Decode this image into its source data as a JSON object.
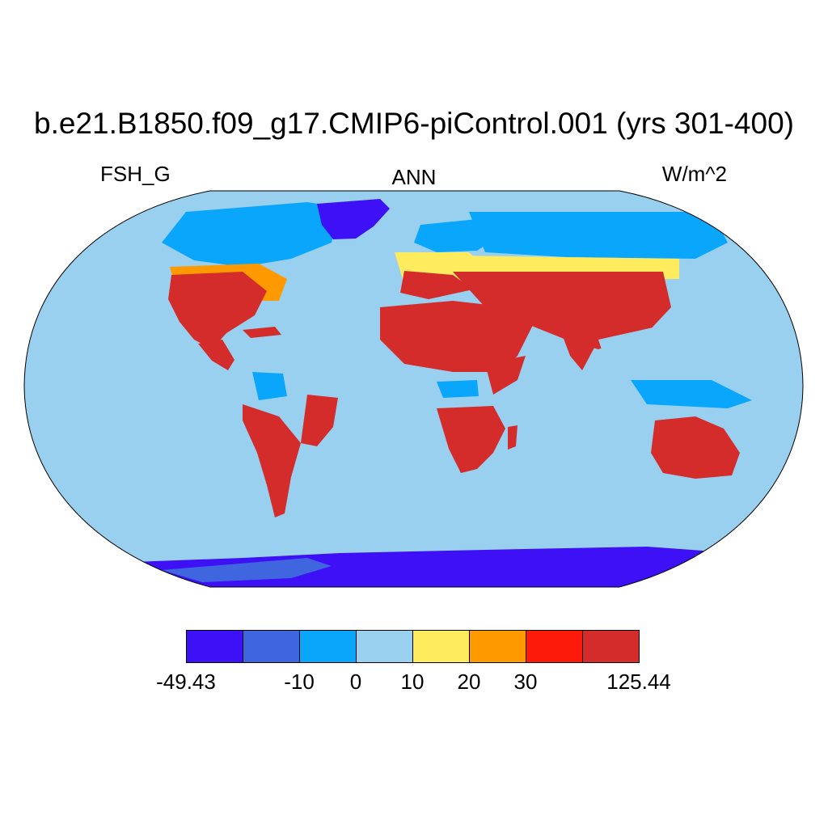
{
  "title": "b.e21.B1850.f09_g17.CMIP6-piControl.001 (yrs 301-400)",
  "subtitle_left": "FSH_G",
  "subtitle_center": "ANN",
  "subtitle_right": "W/m^2",
  "colorbar": {
    "colors": [
      "#3d10f5",
      "#3f66de",
      "#09a6fb",
      "#9ad0ef",
      "#feec5e",
      "#fe9a00",
      "#fe1a0b",
      "#d42b2b"
    ],
    "tick_labels": [
      "-49.43",
      "-10",
      "0",
      "10",
      "20",
      "30",
      "125.44"
    ]
  },
  "map": {
    "projection": "Robinson",
    "ocean_color": "#9ad0ef"
  }
}
